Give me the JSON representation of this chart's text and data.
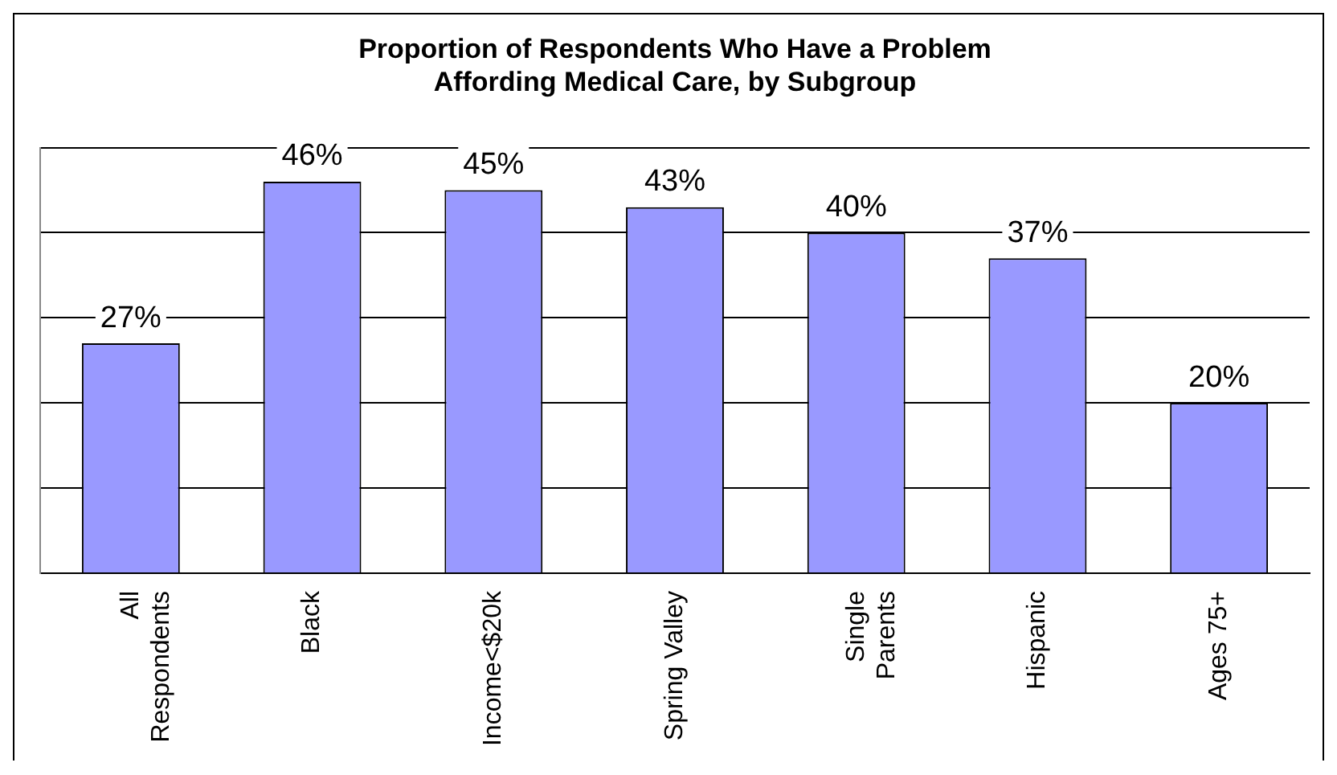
{
  "chart_data": {
    "type": "bar",
    "title": "Proportion of Respondents Who Have a Problem Affording Medical Care, by Subgroup",
    "categories": [
      "All Respondents",
      "Black",
      "Income<$20k",
      "Spring Valley",
      "Single Parents",
      "Hispanic",
      "Ages 75+"
    ],
    "values": [
      27,
      46,
      45,
      43,
      40,
      37,
      20
    ],
    "value_labels": [
      "27%",
      "46%",
      "45%",
      "43%",
      "40%",
      "37%",
      "20%"
    ],
    "color": "#9999ff",
    "ylim": [
      0,
      50
    ],
    "yticks": [
      {
        "value": 0,
        "label": null
      },
      {
        "value": 10,
        "label": null
      },
      {
        "value": 20,
        "label": null
      },
      {
        "value": 30,
        "label": null
      },
      {
        "value": 40,
        "label": null
      },
      {
        "value": 50,
        "label": null
      }
    ],
    "tick_labels": "x",
    "grid": "y",
    "legend": false
  }
}
